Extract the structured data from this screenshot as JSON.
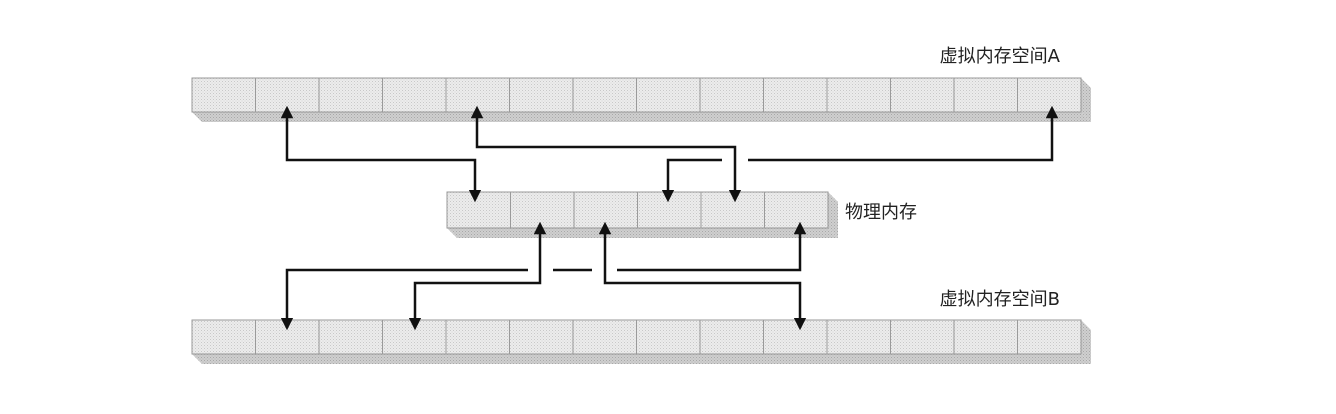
{
  "diagram": {
    "labels": {
      "virtual_a": "虚拟内存空间A",
      "physical": "物理内存",
      "virtual_b": "虚拟内存空间B"
    },
    "memory_rows": [
      {
        "id": "virtual-a",
        "cells": 14
      },
      {
        "id": "physical",
        "cells": 6
      },
      {
        "id": "virtual-b",
        "cells": 14
      }
    ],
    "colors": {
      "cell_face": "#e6e6e6",
      "cell_depth": "#bdbdbd",
      "arrow": "#111111"
    }
  }
}
